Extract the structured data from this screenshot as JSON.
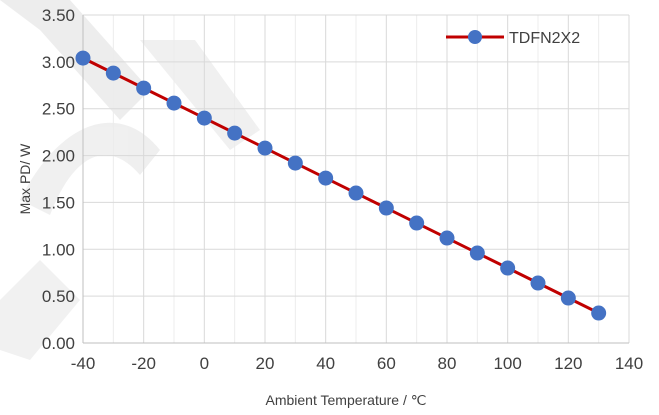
{
  "chart_data": {
    "type": "line",
    "title": "",
    "xlabel": "Ambient Temperature / ℃",
    "ylabel": "Max PD/ W",
    "xlim": [
      -40,
      140
    ],
    "ylim": [
      0,
      3.5
    ],
    "x_ticks": [
      "-40",
      "-20",
      "0",
      "20",
      "40",
      "60",
      "80",
      "100",
      "120",
      "140"
    ],
    "y_ticks": [
      "0.00",
      "0.50",
      "1.00",
      "1.50",
      "2.00",
      "2.50",
      "3.00",
      "3.50"
    ],
    "grid": true,
    "legend_position": "top-right",
    "series": [
      {
        "name": "TDFN2X2",
        "line_color": "#c00000",
        "marker_color": "#4472c4",
        "x": [
          -40,
          -30,
          -20,
          -10,
          0,
          10,
          20,
          30,
          40,
          50,
          60,
          70,
          80,
          90,
          100,
          110,
          120,
          130
        ],
        "y": [
          3.04,
          2.88,
          2.72,
          2.56,
          2.4,
          2.24,
          2.08,
          1.92,
          1.76,
          1.6,
          1.44,
          1.28,
          1.12,
          0.96,
          0.8,
          0.64,
          0.48,
          0.32
        ]
      }
    ]
  }
}
